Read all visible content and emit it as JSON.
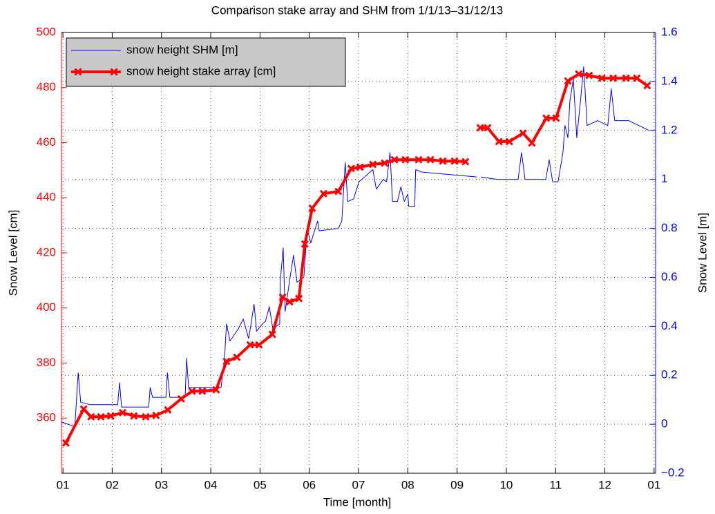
{
  "chart_data": {
    "type": "line",
    "title": "Comparison stake array and SHM from 1/1/13–31/12/13",
    "x_label": "Time [month]",
    "y_label": "Snow Level [cm]",
    "y2_label": "Snow Level [m]",
    "grid": true,
    "legend_position": "upper left",
    "legend_background": "#c8c8c8",
    "y_color": "#ff0000",
    "y2_color": "#0000ff",
    "xlim": [
      -0.03,
      12.03
    ],
    "xticks": [
      {
        "value": 0,
        "label": "01"
      },
      {
        "value": 1,
        "label": "02"
      },
      {
        "value": 2,
        "label": "03"
      },
      {
        "value": 3,
        "label": "04"
      },
      {
        "value": 4,
        "label": "05"
      },
      {
        "value": 5,
        "label": "06"
      },
      {
        "value": 6,
        "label": "07"
      },
      {
        "value": 7,
        "label": "08"
      },
      {
        "value": 8,
        "label": "09"
      },
      {
        "value": 9,
        "label": "10"
      },
      {
        "value": 10,
        "label": "11"
      },
      {
        "value": 11,
        "label": "12"
      },
      {
        "value": 12,
        "label": "01"
      }
    ],
    "ylim": [
      340,
      500
    ],
    "yticks": [
      360,
      380,
      400,
      420,
      440,
      460,
      480,
      500
    ],
    "y2lim": [
      -0.2,
      1.6
    ],
    "y2ticks": [
      {
        "value": -0.2,
        "label": "−0.2"
      },
      0,
      0.2,
      0.4,
      0.6,
      0.8,
      1,
      1.2,
      1.4,
      1.6
    ],
    "series": [
      {
        "name": "snow height SHM [m]",
        "color": "#0000ff",
        "axis": "y2",
        "line_width": 1,
        "marker": false,
        "x": [
          -0.03,
          0.24,
          0.31,
          0.36,
          0.55,
          1.11,
          1.15,
          1.19,
          1.74,
          1.77,
          1.82,
          2.09,
          2.12,
          2.17,
          2.48,
          2.51,
          2.55,
          3.21,
          3.28,
          3.32,
          3.39,
          3.56,
          3.66,
          3.77,
          3.88,
          3.93,
          4.05,
          4.11,
          4.19,
          4.26,
          4.4,
          4.41,
          4.47,
          4.51,
          4.61,
          4.68,
          4.75,
          4.89,
          4.96,
          5.03,
          5.17,
          5.2,
          5.59,
          5.66,
          5.73,
          5.78,
          5.9,
          5.93,
          6.01,
          6.29,
          6.36,
          6.5,
          6.57,
          6.64,
          6.69,
          6.79,
          6.86,
          6.93,
          7.0,
          7.02,
          7.14,
          7.16,
          7.28,
          7.84,
          8.4,
          8.44,
          8.48,
          8.82,
          9.24,
          9.31,
          9.38,
          9.8,
          9.87,
          9.94,
          10.05,
          10.15,
          10.19,
          10.25,
          10.29,
          10.36,
          10.43,
          10.5,
          10.57,
          10.64,
          10.85,
          11.06,
          11.13,
          11.2,
          11.48,
          11.69,
          11.9
        ],
        "values": [
          0.01,
          -0.01,
          0.21,
          0.09,
          0.08,
          0.08,
          0.17,
          0.07,
          0.07,
          0.15,
          0.11,
          0.11,
          0.21,
          0.11,
          0.11,
          0.27,
          0.15,
          0.15,
          0.27,
          0.41,
          0.34,
          0.39,
          0.43,
          0.35,
          0.49,
          0.38,
          0.41,
          0.42,
          0.48,
          0.39,
          0.41,
          0.58,
          0.72,
          0.46,
          0.6,
          0.69,
          0.58,
          0.6,
          0.8,
          0.74,
          0.83,
          0.79,
          0.8,
          0.83,
          1.07,
          0.91,
          0.92,
          0.94,
          0.99,
          1.04,
          0.96,
          1.0,
          0.99,
          1.11,
          0.91,
          0.91,
          0.97,
          0.91,
          0.94,
          0.89,
          0.89,
          1.04,
          1.03,
          1.02,
          1.01,
          null,
          1.01,
          1.0,
          1.0,
          1.11,
          1.0,
          1.0,
          1.08,
          0.99,
          0.99,
          1.11,
          1.22,
          1.17,
          1.32,
          1.41,
          1.17,
          1.31,
          1.46,
          1.22,
          1.24,
          1.22,
          1.37,
          1.24,
          1.24,
          1.22,
          1.2
        ]
      },
      {
        "name": "snow height stake array [cm]",
        "color": "#ff0000",
        "axis": "y",
        "line_width": 4,
        "marker": true,
        "x": [
          0.06,
          0.42,
          0.57,
          0.77,
          0.97,
          1.21,
          1.44,
          1.68,
          1.89,
          2.13,
          2.4,
          2.62,
          2.83,
          3.11,
          3.32,
          3.53,
          3.8,
          3.98,
          4.25,
          4.46,
          4.6,
          4.79,
          4.91,
          5.06,
          5.29,
          5.59,
          5.85,
          6.03,
          6.29,
          6.53,
          6.73,
          6.95,
          7.22,
          7.46,
          7.71,
          7.95,
          8.17,
          8.32,
          8.47,
          8.62,
          8.85,
          9.06,
          9.34,
          9.52,
          9.81,
          10.01,
          10.25,
          10.47,
          10.68,
          10.94,
          11.17,
          11.43,
          11.65,
          11.86
        ],
        "values": [
          351,
          363.3,
          360.5,
          360.5,
          360.8,
          362,
          360.8,
          360.5,
          361,
          363,
          367,
          369.8,
          369.8,
          370.3,
          380.6,
          382.1,
          386.6,
          386.6,
          390.4,
          403.9,
          402.2,
          403.4,
          423.2,
          436.2,
          441.5,
          442.3,
          450.6,
          451.1,
          452.1,
          452.6,
          453.8,
          453.8,
          453.8,
          453.8,
          453.3,
          453.3,
          453.1,
          null,
          465.4,
          465.4,
          460.4,
          460.4,
          463.4,
          459.9,
          468.9,
          468.9,
          482.4,
          484.9,
          484.4,
          483.4,
          483.4,
          483.4,
          483.4,
          480.7
        ]
      }
    ]
  }
}
